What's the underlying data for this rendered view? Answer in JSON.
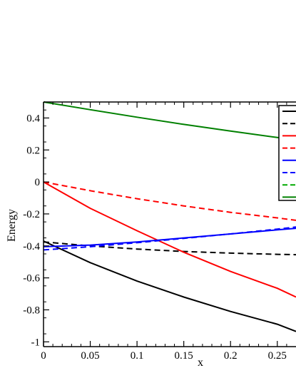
{
  "chart_data": {
    "type": "line",
    "title": "",
    "xlabel": "x",
    "ylabel": "Energy",
    "xlim": [
      0,
      0.27
    ],
    "ylim": [
      -1.03,
      0.5
    ],
    "xticks": [
      0,
      0.05,
      0.1,
      0.15,
      0.2,
      0.25
    ],
    "xtick_labels": [
      "0",
      "0.05",
      "0.1",
      "0.15",
      "0.2",
      "0.25"
    ],
    "yticks": [
      0.4,
      0.2,
      0,
      -0.2,
      -0.4,
      -0.6,
      -0.8,
      -1
    ],
    "ytick_labels": [
      "0.4",
      "0.2",
      "0",
      "-0.2",
      "-0.4",
      "-0.6",
      "-0.8",
      "-1"
    ],
    "grid": false,
    "legend_position": "top-right",
    "series": [
      {
        "color": "#000000",
        "dash": "solid",
        "x": [
          0,
          0.05,
          0.1,
          0.15,
          0.2,
          0.25,
          0.27
        ],
        "y": [
          -0.37,
          -0.505,
          -0.62,
          -0.72,
          -0.81,
          -0.89,
          -0.935
        ]
      },
      {
        "color": "#000000",
        "dash": "dashed",
        "x": [
          0,
          0.05,
          0.1,
          0.15,
          0.2,
          0.25,
          0.27
        ],
        "y": [
          -0.375,
          -0.4,
          -0.42,
          -0.435,
          -0.445,
          -0.453,
          -0.455
        ]
      },
      {
        "color": "#ff0000",
        "dash": "solid",
        "x": [
          0,
          0.05,
          0.1,
          0.15,
          0.2,
          0.25,
          0.27
        ],
        "y": [
          0,
          -0.165,
          -0.305,
          -0.44,
          -0.56,
          -0.665,
          -0.72
        ]
      },
      {
        "color": "#ff0000",
        "dash": "dashed",
        "x": [
          0,
          0.05,
          0.1,
          0.15,
          0.2,
          0.25,
          0.27
        ],
        "y": [
          0,
          -0.055,
          -0.105,
          -0.15,
          -0.19,
          -0.225,
          -0.24
        ]
      },
      {
        "color": "#0000ff",
        "dash": "solid",
        "x": [
          0,
          0.05,
          0.1,
          0.15,
          0.2,
          0.25,
          0.27
        ],
        "y": [
          -0.405,
          -0.395,
          -0.375,
          -0.35,
          -0.325,
          -0.3,
          -0.29
        ]
      },
      {
        "color": "#0000ff",
        "dash": "dashed",
        "x": [
          0,
          0.05,
          0.1,
          0.15,
          0.2,
          0.25,
          0.27
        ],
        "y": [
          -0.425,
          -0.405,
          -0.38,
          -0.353,
          -0.325,
          -0.295,
          -0.282
        ]
      },
      {
        "color": "#00aa00",
        "dash": "dashed",
        "x": [],
        "y": []
      },
      {
        "color": "#008000",
        "dash": "solid",
        "x": [
          0,
          0.05,
          0.1,
          0.15,
          0.2,
          0.25,
          0.27
        ],
        "y": [
          0.5,
          0.452,
          0.405,
          0.36,
          0.318,
          0.278,
          0.262
        ]
      }
    ]
  }
}
